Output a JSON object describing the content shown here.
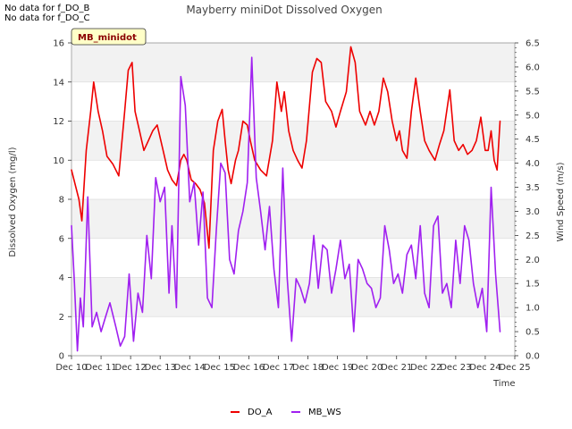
{
  "notes": [
    "No data for f_DO_B",
    "No data for f_DO_C"
  ],
  "chart_data": {
    "type": "line",
    "title": "Mayberry miniDot Dissolved Oxygen",
    "site_tag": "MB_minidot",
    "xlabel": "Time",
    "ylabel_left": "Dissolved Oxygen (mg/l)",
    "ylabel_right": "Wind Speed (m/s)",
    "x_ticks": [
      "Dec 10",
      "Dec 11",
      "Dec 12",
      "Dec 13",
      "Dec 14",
      "Dec 15",
      "Dec 16",
      "Dec 17",
      "Dec 18",
      "Dec 19",
      "Dec 20",
      "Dec 21",
      "Dec 22",
      "Dec 23",
      "Dec 24",
      "Dec 25"
    ],
    "xlim_days": [
      10,
      25
    ],
    "ylim_left": [
      0,
      16
    ],
    "ylim_right": [
      0,
      6.5
    ],
    "y_ticks_left": [
      0,
      2,
      4,
      6,
      8,
      10,
      12,
      14,
      16
    ],
    "y_ticks_right": [
      0.0,
      0.5,
      1.0,
      1.5,
      2.0,
      2.5,
      3.0,
      3.5,
      4.0,
      4.5,
      5.0,
      5.5,
      6.0,
      6.5
    ],
    "grid": true,
    "legend_position": "bottom",
    "series": [
      {
        "name": "DO_A",
        "axis": "left",
        "color": "#ee0000",
        "x": [
          10.0,
          10.25,
          10.35,
          10.5,
          10.65,
          10.75,
          10.9,
          11.05,
          11.2,
          11.4,
          11.6,
          11.8,
          11.92,
          12.05,
          12.15,
          12.3,
          12.45,
          12.6,
          12.75,
          12.9,
          13.1,
          13.25,
          13.4,
          13.55,
          13.7,
          13.8,
          13.9,
          14.05,
          14.2,
          14.35,
          14.5,
          14.65,
          14.8,
          14.85,
          14.95,
          15.1,
          15.2,
          15.3,
          15.4,
          15.55,
          15.65,
          15.8,
          15.95,
          16.05,
          16.2,
          16.4,
          16.6,
          16.8,
          16.95,
          17.1,
          17.2,
          17.35,
          17.5,
          17.65,
          17.8,
          17.95,
          18.15,
          18.3,
          18.45,
          18.6,
          18.8,
          18.95,
          19.1,
          19.3,
          19.45,
          19.6,
          19.75,
          19.95,
          20.1,
          20.25,
          20.4,
          20.55,
          20.7,
          20.85,
          21.0,
          21.1,
          21.2,
          21.35,
          21.5,
          21.65,
          21.8,
          21.95,
          22.1,
          22.3,
          22.45,
          22.6,
          22.8,
          22.95,
          23.1,
          23.25,
          23.4,
          23.55,
          23.7,
          23.85,
          24.0,
          24.1,
          24.2,
          24.3,
          24.4,
          24.5
        ],
        "values": [
          9.5,
          8.0,
          6.9,
          10.5,
          12.5,
          14.0,
          12.5,
          11.5,
          10.2,
          9.8,
          9.2,
          12.5,
          14.6,
          15.0,
          12.5,
          11.5,
          10.5,
          11.0,
          11.5,
          11.8,
          10.5,
          9.5,
          9.0,
          8.7,
          10.0,
          10.3,
          10.0,
          9.0,
          8.8,
          8.5,
          7.8,
          5.5,
          10.5,
          11.0,
          12.0,
          12.6,
          11.0,
          9.5,
          8.8,
          10.0,
          10.5,
          12.0,
          11.8,
          11.0,
          10.0,
          9.5,
          9.2,
          11.0,
          14.0,
          12.5,
          13.5,
          11.5,
          10.5,
          10.0,
          9.6,
          11.0,
          14.5,
          15.2,
          15.0,
          13.0,
          12.5,
          11.7,
          12.5,
          13.5,
          15.8,
          15.0,
          12.5,
          11.8,
          12.5,
          11.8,
          12.5,
          14.2,
          13.5,
          12.0,
          11.0,
          11.5,
          10.5,
          10.1,
          12.5,
          14.2,
          12.5,
          11.0,
          10.5,
          10.0,
          10.8,
          11.5,
          13.6,
          11.0,
          10.5,
          10.8,
          10.3,
          10.5,
          11.0,
          12.2,
          10.5,
          10.5,
          11.5,
          10.0,
          9.5,
          12.0
        ]
      },
      {
        "name": "MB_WS",
        "axis": "right",
        "color": "#a020f0",
        "x": [
          10.0,
          10.1,
          10.2,
          10.3,
          10.4,
          10.55,
          10.7,
          10.85,
          11.0,
          11.15,
          11.3,
          11.5,
          11.65,
          11.8,
          11.95,
          12.1,
          12.25,
          12.4,
          12.55,
          12.7,
          12.85,
          13.0,
          13.15,
          13.3,
          13.4,
          13.55,
          13.7,
          13.85,
          14.0,
          14.15,
          14.3,
          14.45,
          14.6,
          14.75,
          14.9,
          15.05,
          15.2,
          15.35,
          15.5,
          15.65,
          15.8,
          15.95,
          16.1,
          16.25,
          16.4,
          16.55,
          16.7,
          16.85,
          17.0,
          17.15,
          17.3,
          17.45,
          17.6,
          17.75,
          17.9,
          18.05,
          18.2,
          18.35,
          18.5,
          18.65,
          18.8,
          18.95,
          19.1,
          19.25,
          19.4,
          19.55,
          19.7,
          19.85,
          20.0,
          20.15,
          20.3,
          20.45,
          20.6,
          20.75,
          20.9,
          21.05,
          21.2,
          21.35,
          21.5,
          21.65,
          21.8,
          21.95,
          22.1,
          22.25,
          22.4,
          22.55,
          22.7,
          22.85,
          23.0,
          23.15,
          23.3,
          23.45,
          23.6,
          23.75,
          23.9,
          24.05,
          24.2,
          24.35,
          24.5
        ],
        "values": [
          2.7,
          1.5,
          0.1,
          1.2,
          0.6,
          3.3,
          0.6,
          0.9,
          0.5,
          0.8,
          1.1,
          0.6,
          0.2,
          0.4,
          1.7,
          0.3,
          1.3,
          0.9,
          2.5,
          1.6,
          3.7,
          3.2,
          3.5,
          1.3,
          2.7,
          1.0,
          5.8,
          5.2,
          3.2,
          3.6,
          2.3,
          3.4,
          1.2,
          1.0,
          2.6,
          4.0,
          3.8,
          2.0,
          1.7,
          2.6,
          3.0,
          3.6,
          6.2,
          3.7,
          3.0,
          2.2,
          3.1,
          1.8,
          1.0,
          3.9,
          1.6,
          0.3,
          1.6,
          1.4,
          1.1,
          1.5,
          2.5,
          1.4,
          2.3,
          2.2,
          1.3,
          1.8,
          2.4,
          1.6,
          1.9,
          0.5,
          2.0,
          1.8,
          1.5,
          1.4,
          1.0,
          1.2,
          2.7,
          2.2,
          1.5,
          1.7,
          1.3,
          2.1,
          2.3,
          1.6,
          2.7,
          1.3,
          1.0,
          2.7,
          2.9,
          1.3,
          1.5,
          1.0,
          2.4,
          1.5,
          2.7,
          2.4,
          1.5,
          1.0,
          1.4,
          0.5,
          3.5,
          1.7,
          0.5
        ]
      }
    ]
  }
}
